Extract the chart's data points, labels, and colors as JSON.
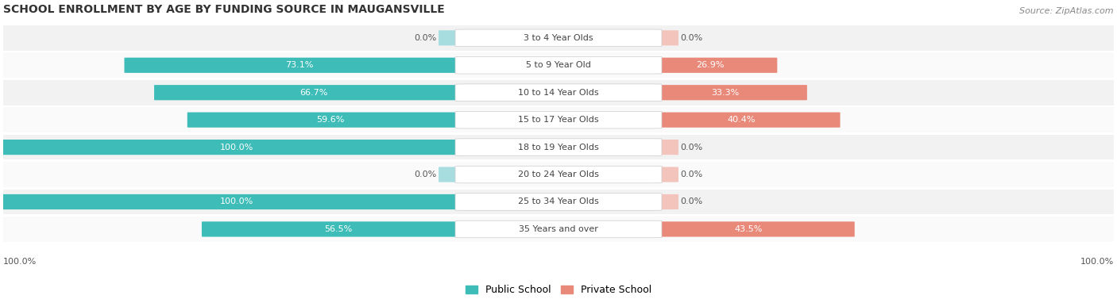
{
  "title": "SCHOOL ENROLLMENT BY AGE BY FUNDING SOURCE IN MAUGANSVILLE",
  "source": "Source: ZipAtlas.com",
  "categories": [
    "3 to 4 Year Olds",
    "5 to 9 Year Old",
    "10 to 14 Year Olds",
    "15 to 17 Year Olds",
    "18 to 19 Year Olds",
    "20 to 24 Year Olds",
    "25 to 34 Year Olds",
    "35 Years and over"
  ],
  "public_values": [
    0.0,
    73.1,
    66.7,
    59.6,
    100.0,
    0.0,
    100.0,
    56.5
  ],
  "private_values": [
    0.0,
    26.9,
    33.3,
    40.4,
    0.0,
    0.0,
    0.0,
    43.5
  ],
  "public_color": "#3DBCB8",
  "private_color": "#E8897A",
  "public_color_light": "#A8DDE0",
  "private_color_light": "#F2C4BC",
  "row_bg_even": "#F2F2F2",
  "row_bg_odd": "#FAFAFA",
  "title_fontsize": 10,
  "source_fontsize": 8,
  "value_fontsize": 8,
  "cat_fontsize": 8,
  "legend_fontsize": 9
}
